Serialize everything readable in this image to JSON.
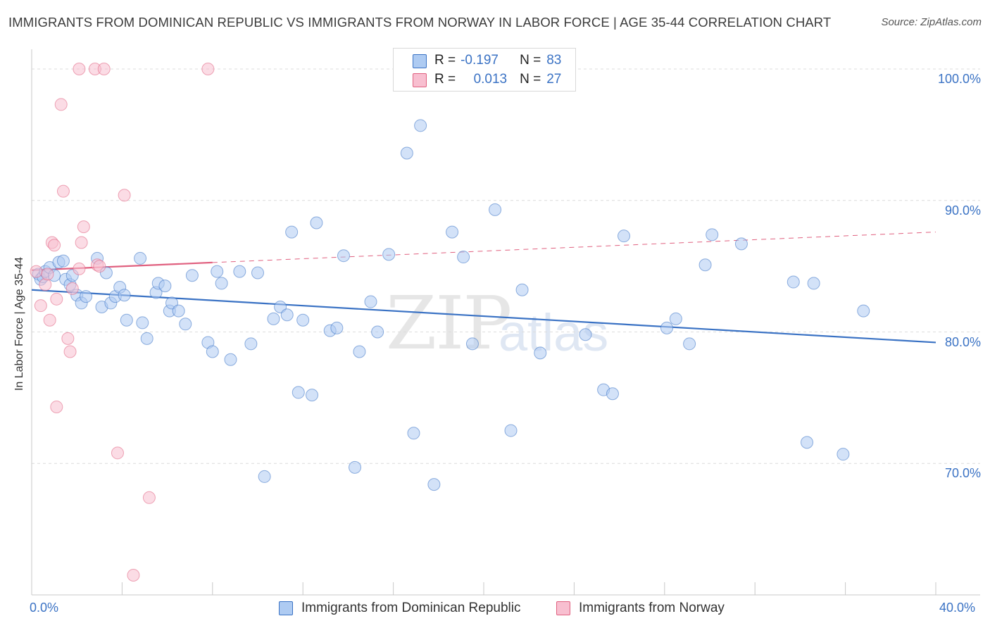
{
  "title": "IMMIGRANTS FROM DOMINICAN REPUBLIC VS IMMIGRANTS FROM NORWAY IN LABOR FORCE | AGE 35-44 CORRELATION CHART",
  "source": "Source: ZipAtlas.com",
  "watermark": {
    "zip": "ZIP",
    "atlas": "atlas"
  },
  "legend": {
    "rows": [
      {
        "r_label": "R =",
        "r_value": "-0.197",
        "n_label": "N =",
        "n_value": "83",
        "color": "#aecbf2"
      },
      {
        "r_label": "R =",
        "r_value": "0.013",
        "n_label": "N =",
        "n_value": "27",
        "color": "#f8bfd0"
      }
    ]
  },
  "bottom_legend": {
    "items": [
      {
        "label": "Immigrants from Dominican Republic",
        "color": "#aecbf2"
      },
      {
        "label": "Immigrants from Norway",
        "color": "#f8bfd0"
      }
    ]
  },
  "chart_data": {
    "type": "scatter",
    "title": "IMMIGRANTS FROM DOMINICAN REPUBLIC VS IMMIGRANTS FROM NORWAY IN LABOR FORCE | AGE 35-44 CORRELATION CHART",
    "xlabel": "",
    "ylabel": "In Labor Force | Age 35-44",
    "xlim": [
      0,
      40
    ],
    "ylim": [
      60,
      101.5
    ],
    "x_tick_labels": [
      "0.0%",
      "40.0%"
    ],
    "y_tick_labels": [
      "70.0%",
      "80.0%",
      "90.0%",
      "100.0%"
    ],
    "y_ticks": [
      70,
      80,
      90,
      100
    ],
    "series": [
      {
        "name": "Immigrants from Dominican Republic",
        "color": "#3a72c4",
        "fill": "#aecbf2",
        "trend": {
          "x0": 0,
          "y0": 83.2,
          "x1": 40,
          "y1": 79.2
        },
        "points": [
          [
            0.3,
            84.4
          ],
          [
            0.4,
            84.0
          ],
          [
            0.5,
            84.2
          ],
          [
            0.6,
            84.6
          ],
          [
            0.8,
            84.9
          ],
          [
            1.0,
            84.3
          ],
          [
            1.2,
            85.3
          ],
          [
            1.4,
            85.4
          ],
          [
            1.5,
            84.0
          ],
          [
            1.7,
            83.6
          ],
          [
            1.8,
            84.3
          ],
          [
            2.0,
            82.8
          ],
          [
            2.2,
            82.2
          ],
          [
            2.4,
            82.7
          ],
          [
            2.9,
            85.6
          ],
          [
            3.1,
            81.9
          ],
          [
            3.3,
            84.5
          ],
          [
            3.5,
            82.2
          ],
          [
            3.7,
            82.7
          ],
          [
            3.9,
            83.4
          ],
          [
            4.1,
            82.8
          ],
          [
            4.2,
            80.9
          ],
          [
            4.8,
            85.6
          ],
          [
            4.9,
            80.7
          ],
          [
            5.1,
            79.5
          ],
          [
            5.5,
            83.0
          ],
          [
            5.6,
            83.7
          ],
          [
            5.9,
            83.5
          ],
          [
            6.1,
            81.6
          ],
          [
            6.2,
            82.2
          ],
          [
            6.5,
            81.6
          ],
          [
            6.8,
            80.6
          ],
          [
            7.1,
            84.3
          ],
          [
            7.8,
            79.2
          ],
          [
            8.0,
            78.5
          ],
          [
            8.2,
            84.6
          ],
          [
            8.4,
            83.7
          ],
          [
            8.8,
            77.9
          ],
          [
            9.2,
            84.6
          ],
          [
            9.7,
            79.1
          ],
          [
            10.0,
            84.5
          ],
          [
            10.3,
            69.0
          ],
          [
            10.7,
            81.0
          ],
          [
            11.0,
            81.9
          ],
          [
            11.3,
            81.3
          ],
          [
            11.5,
            87.6
          ],
          [
            11.8,
            75.4
          ],
          [
            12.0,
            80.9
          ],
          [
            12.4,
            75.2
          ],
          [
            12.6,
            88.3
          ],
          [
            13.2,
            80.1
          ],
          [
            13.5,
            80.3
          ],
          [
            13.8,
            85.8
          ],
          [
            14.3,
            69.7
          ],
          [
            14.5,
            78.5
          ],
          [
            15.0,
            82.3
          ],
          [
            15.3,
            80.0
          ],
          [
            15.8,
            85.9
          ],
          [
            16.6,
            93.6
          ],
          [
            16.9,
            72.3
          ],
          [
            17.2,
            95.7
          ],
          [
            17.8,
            68.4
          ],
          [
            18.6,
            87.6
          ],
          [
            19.1,
            85.7
          ],
          [
            19.5,
            79.1
          ],
          [
            20.5,
            89.3
          ],
          [
            21.2,
            72.5
          ],
          [
            21.7,
            83.2
          ],
          [
            22.5,
            78.4
          ],
          [
            24.5,
            79.8
          ],
          [
            25.3,
            75.6
          ],
          [
            25.7,
            75.3
          ],
          [
            26.2,
            87.3
          ],
          [
            28.1,
            80.3
          ],
          [
            28.5,
            81.0
          ],
          [
            29.1,
            79.1
          ],
          [
            29.8,
            85.1
          ],
          [
            30.1,
            87.4
          ],
          [
            31.4,
            86.7
          ],
          [
            33.7,
            83.8
          ],
          [
            34.3,
            71.6
          ],
          [
            34.6,
            83.7
          ],
          [
            35.9,
            70.7
          ],
          [
            36.8,
            81.6
          ]
        ]
      },
      {
        "name": "Immigrants from Norway",
        "color": "#e0607f",
        "fill": "#f8bfd0",
        "trend": {
          "x0": 0,
          "y0": 84.7,
          "x1": 40,
          "y1": 87.6,
          "solid_until": 8.0
        },
        "points": [
          [
            0.2,
            84.6
          ],
          [
            0.4,
            82.0
          ],
          [
            0.6,
            83.6
          ],
          [
            0.7,
            84.4
          ],
          [
            0.8,
            80.9
          ],
          [
            0.9,
            86.8
          ],
          [
            1.0,
            86.6
          ],
          [
            1.1,
            74.3
          ],
          [
            1.3,
            97.3
          ],
          [
            1.4,
            90.7
          ],
          [
            1.6,
            79.5
          ],
          [
            1.7,
            78.5
          ],
          [
            1.8,
            83.3
          ],
          [
            2.1,
            84.8
          ],
          [
            2.2,
            86.8
          ],
          [
            2.3,
            88.0
          ],
          [
            2.9,
            85.1
          ],
          [
            3.0,
            85.0
          ],
          [
            3.8,
            70.8
          ],
          [
            4.1,
            90.4
          ],
          [
            4.5,
            61.5
          ],
          [
            5.2,
            67.4
          ],
          [
            2.1,
            100.0
          ],
          [
            2.8,
            100.0
          ],
          [
            3.2,
            100.0
          ],
          [
            7.8,
            100.0
          ],
          [
            1.1,
            82.5
          ]
        ]
      }
    ]
  }
}
